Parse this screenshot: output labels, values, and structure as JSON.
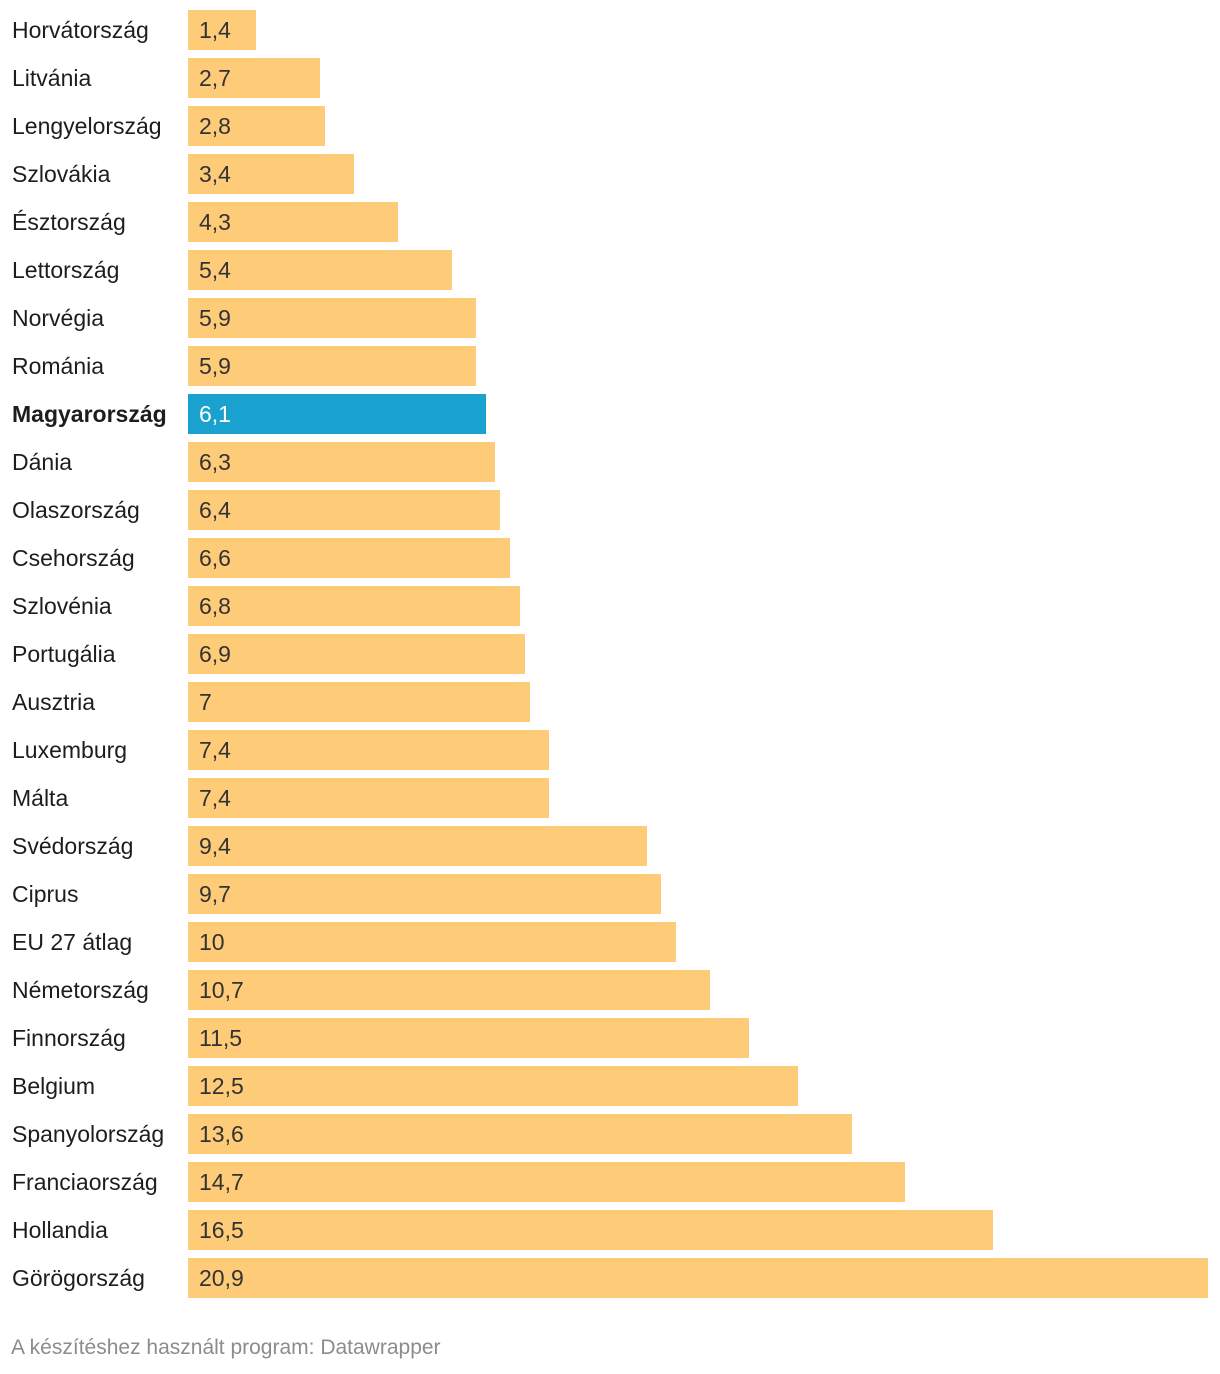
{
  "chart_data": {
    "type": "bar",
    "orientation": "horizontal",
    "categories": [
      "Horvátország",
      "Litvánia",
      "Lengyelország",
      "Szlovákia",
      "Észtország",
      "Lettország",
      "Norvégia",
      "Románia",
      "Magyarország",
      "Dánia",
      "Olaszország",
      "Csehország",
      "Szlovénia",
      "Portugália",
      "Ausztria",
      "Luxemburg",
      "Málta",
      "Svédország",
      "Ciprus",
      "EU 27 átlag",
      "Németország",
      "Finnország",
      "Belgium",
      "Spanyolország",
      "Franciaország",
      "Hollandia",
      "Görögország"
    ],
    "values": [
      1.4,
      2.7,
      2.8,
      3.4,
      4.3,
      5.4,
      5.9,
      5.9,
      6.1,
      6.3,
      6.4,
      6.6,
      6.8,
      6.9,
      7,
      7.4,
      7.4,
      9.4,
      9.7,
      10,
      10.7,
      11.5,
      12.5,
      13.6,
      14.7,
      16.5,
      20.9
    ],
    "value_labels": [
      "1,4",
      "2,7",
      "2,8",
      "3,4",
      "4,3",
      "5,4",
      "5,9",
      "5,9",
      "6,1",
      "6,3",
      "6,4",
      "6,6",
      "6,8",
      "6,9",
      "7",
      "7,4",
      "7,4",
      "9,4",
      "9,7",
      "10",
      "10,7",
      "11,5",
      "12,5",
      "13,6",
      "14,7",
      "16,5",
      "20,9"
    ],
    "highlight": "Magyarország",
    "xlim": [
      0,
      20.9
    ],
    "colors": {
      "default": "#fecb78",
      "highlight": "#19a2cf"
    }
  },
  "footer": {
    "credit": "A készítéshez használt program: Datawrapper"
  }
}
